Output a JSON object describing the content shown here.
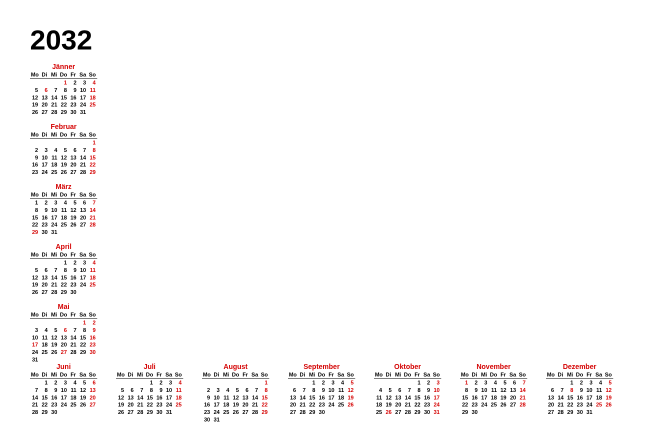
{
  "title": "2032",
  "weekdays": [
    "Mo",
    "Di",
    "Mi",
    "Do",
    "Fr",
    "Sa",
    "So"
  ],
  "months": [
    {
      "name": "Jänner",
      "holidays": [
        1,
        6
      ],
      "weeks": [
        [
          null,
          null,
          null,
          1,
          2,
          3,
          4
        ],
        [
          5,
          6,
          7,
          8,
          9,
          10,
          11
        ],
        [
          12,
          13,
          14,
          15,
          16,
          17,
          18
        ],
        [
          19,
          20,
          21,
          22,
          23,
          24,
          25
        ],
        [
          26,
          27,
          28,
          29,
          30,
          31,
          null
        ]
      ]
    },
    {
      "name": "Februar",
      "holidays": [],
      "weeks": [
        [
          null,
          null,
          null,
          null,
          null,
          null,
          1
        ],
        [
          2,
          3,
          4,
          5,
          6,
          7,
          8
        ],
        [
          9,
          10,
          11,
          12,
          13,
          14,
          15
        ],
        [
          16,
          17,
          18,
          19,
          20,
          21,
          22
        ],
        [
          23,
          24,
          25,
          26,
          27,
          28,
          29
        ]
      ]
    },
    {
      "name": "März",
      "holidays": [
        29
      ],
      "weeks": [
        [
          1,
          2,
          3,
          4,
          5,
          6,
          7
        ],
        [
          8,
          9,
          10,
          11,
          12,
          13,
          14
        ],
        [
          15,
          16,
          17,
          18,
          19,
          20,
          21
        ],
        [
          22,
          23,
          24,
          25,
          26,
          27,
          28
        ],
        [
          29,
          30,
          31,
          null,
          null,
          null,
          null
        ]
      ]
    },
    {
      "name": "April",
      "holidays": [],
      "weeks": [
        [
          null,
          null,
          null,
          1,
          2,
          3,
          4
        ],
        [
          5,
          6,
          7,
          8,
          9,
          10,
          11
        ],
        [
          12,
          13,
          14,
          15,
          16,
          17,
          18
        ],
        [
          19,
          20,
          21,
          22,
          23,
          24,
          25
        ],
        [
          26,
          27,
          28,
          29,
          30,
          null,
          null
        ]
      ]
    },
    {
      "name": "Mai",
      "holidays": [
        1,
        6,
        17,
        27
      ],
      "weeks": [
        [
          null,
          null,
          null,
          null,
          null,
          1,
          2
        ],
        [
          3,
          4,
          5,
          6,
          7,
          8,
          9
        ],
        [
          10,
          11,
          12,
          13,
          14,
          15,
          16
        ],
        [
          17,
          18,
          19,
          20,
          21,
          22,
          23
        ],
        [
          24,
          25,
          26,
          27,
          28,
          29,
          30
        ],
        [
          31,
          null,
          null,
          null,
          null,
          null,
          null
        ]
      ]
    },
    {
      "name": "Juni",
      "holidays": [],
      "weeks": [
        [
          null,
          1,
          2,
          3,
          4,
          5,
          6
        ],
        [
          7,
          8,
          9,
          10,
          11,
          12,
          13
        ],
        [
          14,
          15,
          16,
          17,
          18,
          19,
          20
        ],
        [
          21,
          22,
          23,
          24,
          25,
          26,
          27
        ],
        [
          28,
          29,
          30,
          null,
          null,
          null,
          null
        ]
      ]
    },
    {
      "name": "Juli",
      "holidays": [],
      "weeks": [
        [
          null,
          null,
          null,
          1,
          2,
          3,
          4
        ],
        [
          5,
          6,
          7,
          8,
          9,
          10,
          11
        ],
        [
          12,
          13,
          14,
          15,
          16,
          17,
          18
        ],
        [
          19,
          20,
          21,
          22,
          23,
          24,
          25
        ],
        [
          26,
          27,
          28,
          29,
          30,
          31,
          null
        ]
      ]
    },
    {
      "name": "August",
      "holidays": [
        15
      ],
      "weeks": [
        [
          null,
          null,
          null,
          null,
          null,
          null,
          1
        ],
        [
          2,
          3,
          4,
          5,
          6,
          7,
          8
        ],
        [
          9,
          10,
          11,
          12,
          13,
          14,
          15
        ],
        [
          16,
          17,
          18,
          19,
          20,
          21,
          22
        ],
        [
          23,
          24,
          25,
          26,
          27,
          28,
          29
        ],
        [
          30,
          31,
          null,
          null,
          null,
          null,
          null
        ]
      ]
    },
    {
      "name": "September",
      "holidays": [],
      "weeks": [
        [
          null,
          null,
          1,
          2,
          3,
          4,
          5
        ],
        [
          6,
          7,
          8,
          9,
          10,
          11,
          12
        ],
        [
          13,
          14,
          15,
          16,
          17,
          18,
          19
        ],
        [
          20,
          21,
          22,
          23,
          24,
          25,
          26
        ],
        [
          27,
          28,
          29,
          30,
          null,
          null,
          null
        ]
      ]
    },
    {
      "name": "Oktober",
      "holidays": [
        26
      ],
      "weeks": [
        [
          null,
          null,
          null,
          null,
          1,
          2,
          3
        ],
        [
          4,
          5,
          6,
          7,
          8,
          9,
          10
        ],
        [
          11,
          12,
          13,
          14,
          15,
          16,
          17
        ],
        [
          18,
          19,
          20,
          21,
          22,
          23,
          24
        ],
        [
          25,
          26,
          27,
          28,
          29,
          30,
          31
        ]
      ]
    },
    {
      "name": "November",
      "holidays": [
        1
      ],
      "weeks": [
        [
          1,
          2,
          3,
          4,
          5,
          6,
          7
        ],
        [
          8,
          9,
          10,
          11,
          12,
          13,
          14
        ],
        [
          15,
          16,
          17,
          18,
          19,
          20,
          21
        ],
        [
          22,
          23,
          24,
          25,
          26,
          27,
          28
        ],
        [
          29,
          30,
          null,
          null,
          null,
          null,
          null
        ]
      ]
    },
    {
      "name": "Dezember",
      "holidays": [
        8,
        25,
        26
      ],
      "weeks": [
        [
          null,
          null,
          1,
          2,
          3,
          4,
          5
        ],
        [
          6,
          7,
          8,
          9,
          10,
          11,
          12
        ],
        [
          13,
          14,
          15,
          16,
          17,
          18,
          19
        ],
        [
          20,
          21,
          22,
          23,
          24,
          25,
          26
        ],
        [
          27,
          28,
          29,
          30,
          31,
          null,
          null
        ]
      ]
    }
  ]
}
